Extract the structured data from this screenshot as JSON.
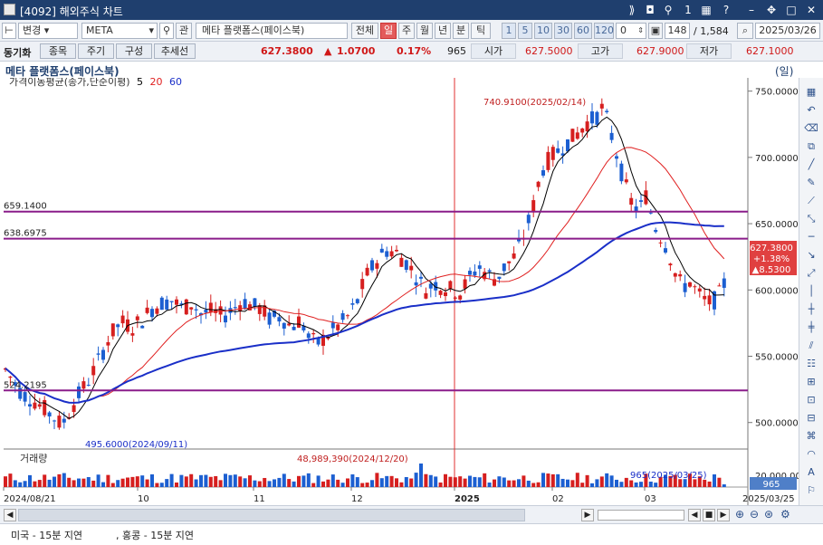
{
  "window": {
    "title": "[4092] 해외주식 차트"
  },
  "toolbar": {
    "mode": "변경",
    "symbol": "META",
    "search_icon": "magnifier-icon",
    "gwan": "관",
    "name": "메타 플랫폼스(페이스북)",
    "all": "전체",
    "periods": [
      "일",
      "주",
      "월",
      "년",
      "분",
      "틱"
    ],
    "minutes": [
      "1",
      "5",
      "10",
      "30",
      "60",
      "120"
    ],
    "zero": "0",
    "count": "148",
    "total": "/ 1,584",
    "date": "2025/03/26"
  },
  "quote": {
    "label": "동기화",
    "tabs": [
      "종목",
      "주기",
      "구성",
      "추세선"
    ],
    "price": "627.3800",
    "change": "1.0700",
    "pct": "0.17%",
    "volume": "965",
    "open_label": "시가",
    "open": "627.5000",
    "high_label": "고가",
    "high": "627.9000",
    "low_label": "저가",
    "low": "627.1000"
  },
  "chart": {
    "name": "메타 플랫폼스(페이스북)",
    "period_tag": "(일)",
    "ma_legend": "가격이동평균(종가,단순이평)",
    "ma_periods": [
      "5",
      "20",
      "60"
    ],
    "ma_colors": [
      "#000000",
      "#e02020",
      "#1a2fc8"
    ],
    "volume_label": "거래량",
    "hlines": [
      "659.1400",
      "638.6975",
      "524.2195"
    ],
    "annot_high": "740.9100(2025/02/14)",
    "annot_low": "495.6000(2024/09/11)",
    "annot_vol": "48,989,390(2024/12/20)",
    "annot_lastvol": "965(2025/03/25)",
    "vol_tag": "965",
    "last_tag": [
      "627.3800",
      "+1.38%",
      "▲8.5300"
    ],
    "yticks": [
      "750.0000",
      "700.0000",
      "650.0000",
      "600.0000",
      "550.0000",
      "500.0000"
    ],
    "xticks": [
      "2024/08/21",
      "10",
      "11",
      "12",
      "2025",
      "02",
      "03",
      "2025/03/25"
    ],
    "vol_ytick": "20,000,00"
  },
  "chart_data": {
    "type": "candlestick",
    "series": [
      {
        "name": "5"
      },
      {
        "name": "20"
      },
      {
        "name": "60"
      }
    ],
    "dates": [
      "2024/08/21",
      "2024/09/11",
      "2024/12/20",
      "2025/02/14",
      "2025/03/25"
    ],
    "ylim": [
      480,
      760
    ]
  },
  "status": {
    "left": "미국 - 15분 지연",
    "right": ", 홍콩 - 15분 지연"
  },
  "icons": {
    "close": "close-icon",
    "maximize": "maximize-icon",
    "minimize": "minimize-icon",
    "pin": "pin-icon",
    "help": "help-icon"
  }
}
